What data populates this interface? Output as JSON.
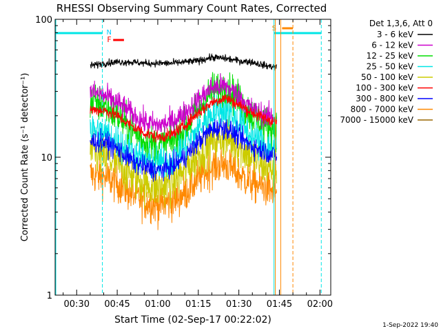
{
  "chart_data": {
    "type": "line",
    "title": "RHESSI Observing Summary Count Rates, Corrected",
    "xlabel": "Start Time (02-Sep-17 00:22:02)",
    "ylabel": "Corrected Count Rate (s⁻¹ detector⁻¹)",
    "yscale": "log",
    "ylim": [
      1,
      100
    ],
    "xlim_minutes": [
      22.03,
      124.0
    ],
    "x_ticks": [
      {
        "label": "00:30",
        "minute": 30
      },
      {
        "label": "00:45",
        "minute": 45
      },
      {
        "label": "01:00",
        "minute": 60
      },
      {
        "label": "01:15",
        "minute": 75
      },
      {
        "label": "01:30",
        "minute": 90
      },
      {
        "label": "01:45",
        "minute": 105
      },
      {
        "label": "02:00",
        "minute": 120
      }
    ],
    "y_ticks": [
      {
        "label": "1",
        "value": 1
      },
      {
        "label": "10",
        "value": 10
      },
      {
        "label": "100",
        "value": 100
      }
    ],
    "legend_header": "Det 1,3,6, Att 0",
    "legend_position": "right, outside",
    "data_start_minute": 35,
    "data_end_minute": 104,
    "series": [
      {
        "name": "3 - 6 keV",
        "color": "#000000",
        "noise": 0.03,
        "points": [
          [
            35,
            46
          ],
          [
            40,
            48
          ],
          [
            45,
            49
          ],
          [
            50,
            49
          ],
          [
            55,
            48
          ],
          [
            60,
            48
          ],
          [
            65,
            48
          ],
          [
            70,
            49
          ],
          [
            75,
            50
          ],
          [
            80,
            53
          ],
          [
            85,
            52
          ],
          [
            90,
            50
          ],
          [
            95,
            49
          ],
          [
            100,
            46
          ],
          [
            104,
            45
          ]
        ]
      },
      {
        "name": "6 - 12 keV",
        "color": "#cc00cc",
        "noise": 0.1,
        "points": [
          [
            35,
            30
          ],
          [
            40,
            28
          ],
          [
            45,
            25
          ],
          [
            50,
            21
          ],
          [
            55,
            18
          ],
          [
            60,
            17
          ],
          [
            65,
            18
          ],
          [
            70,
            21
          ],
          [
            75,
            26
          ],
          [
            80,
            32
          ],
          [
            85,
            33
          ],
          [
            90,
            28
          ],
          [
            95,
            22
          ],
          [
            100,
            20
          ],
          [
            104,
            19
          ]
        ]
      },
      {
        "name": "12 - 25 keV",
        "color": "#00dd00",
        "noise": 0.16,
        "points": [
          [
            35,
            25
          ],
          [
            40,
            24
          ],
          [
            45,
            20
          ],
          [
            50,
            16
          ],
          [
            55,
            13
          ],
          [
            60,
            12
          ],
          [
            65,
            13
          ],
          [
            70,
            16
          ],
          [
            75,
            22
          ],
          [
            80,
            30
          ],
          [
            85,
            32
          ],
          [
            90,
            26
          ],
          [
            95,
            20
          ],
          [
            100,
            17
          ],
          [
            104,
            16
          ]
        ]
      },
      {
        "name": "25 - 50 keV",
        "color": "#00e6e6",
        "noise": 0.15,
        "points": [
          [
            35,
            16
          ],
          [
            40,
            15
          ],
          [
            45,
            13
          ],
          [
            50,
            11
          ],
          [
            55,
            9.5
          ],
          [
            60,
            9
          ],
          [
            65,
            9.5
          ],
          [
            70,
            12
          ],
          [
            75,
            16
          ],
          [
            80,
            21
          ],
          [
            85,
            22
          ],
          [
            90,
            18
          ],
          [
            95,
            14
          ],
          [
            100,
            12
          ],
          [
            104,
            11.5
          ]
        ]
      },
      {
        "name": "50 - 100 keV",
        "color": "#cccc00",
        "noise": 0.18,
        "points": [
          [
            35,
            11
          ],
          [
            40,
            10
          ],
          [
            45,
            9
          ],
          [
            50,
            7.5
          ],
          [
            55,
            6.5
          ],
          [
            60,
            6
          ],
          [
            65,
            6.5
          ],
          [
            70,
            8
          ],
          [
            75,
            10.5
          ],
          [
            80,
            13
          ],
          [
            85,
            14
          ],
          [
            90,
            12
          ],
          [
            95,
            10
          ],
          [
            100,
            8.5
          ],
          [
            104,
            8
          ]
        ]
      },
      {
        "name": "100 - 300 keV",
        "color": "#ff0000",
        "noise": 0.05,
        "points": [
          [
            35,
            22
          ],
          [
            40,
            22
          ],
          [
            45,
            20
          ],
          [
            50,
            17
          ],
          [
            55,
            15
          ],
          [
            60,
            14
          ],
          [
            65,
            14.5
          ],
          [
            70,
            17
          ],
          [
            75,
            21
          ],
          [
            80,
            25
          ],
          [
            85,
            27
          ],
          [
            90,
            24
          ],
          [
            95,
            21
          ],
          [
            100,
            19
          ],
          [
            104,
            18
          ]
        ]
      },
      {
        "name": "300 - 800 keV",
        "color": "#0000ff",
        "noise": 0.09,
        "points": [
          [
            35,
            13
          ],
          [
            40,
            13
          ],
          [
            45,
            11.5
          ],
          [
            50,
            9.5
          ],
          [
            55,
            8.5
          ],
          [
            60,
            8
          ],
          [
            65,
            8.5
          ],
          [
            70,
            10
          ],
          [
            75,
            13
          ],
          [
            80,
            16
          ],
          [
            85,
            16.5
          ],
          [
            90,
            14
          ],
          [
            95,
            12
          ],
          [
            100,
            11
          ],
          [
            104,
            10
          ]
        ]
      },
      {
        "name": "800 - 7000 keV",
        "color": "#ff8800",
        "noise": 0.16,
        "points": [
          [
            35,
            7.5
          ],
          [
            40,
            7.2
          ],
          [
            45,
            6.5
          ],
          [
            50,
            5.5
          ],
          [
            55,
            4.8
          ],
          [
            60,
            4.5
          ],
          [
            65,
            4.8
          ],
          [
            70,
            5.5
          ],
          [
            75,
            7
          ],
          [
            80,
            8.5
          ],
          [
            85,
            9
          ],
          [
            90,
            7.5
          ],
          [
            95,
            6.5
          ],
          [
            100,
            6
          ],
          [
            104,
            5.5
          ]
        ]
      },
      {
        "name": "7000 - 15000 keV",
        "color": "#996600",
        "noise": 0,
        "points": []
      }
    ],
    "annotations": [
      {
        "label": "N",
        "color": "#00ccff",
        "minute": 39.5
      },
      {
        "label": "F",
        "color": "#ff0000",
        "minute": 41.5
      },
      {
        "label": "S",
        "color": "#ff8800",
        "minute": 103.5
      }
    ]
  },
  "footer_timestamp": "1-Sep-2022 19:40"
}
